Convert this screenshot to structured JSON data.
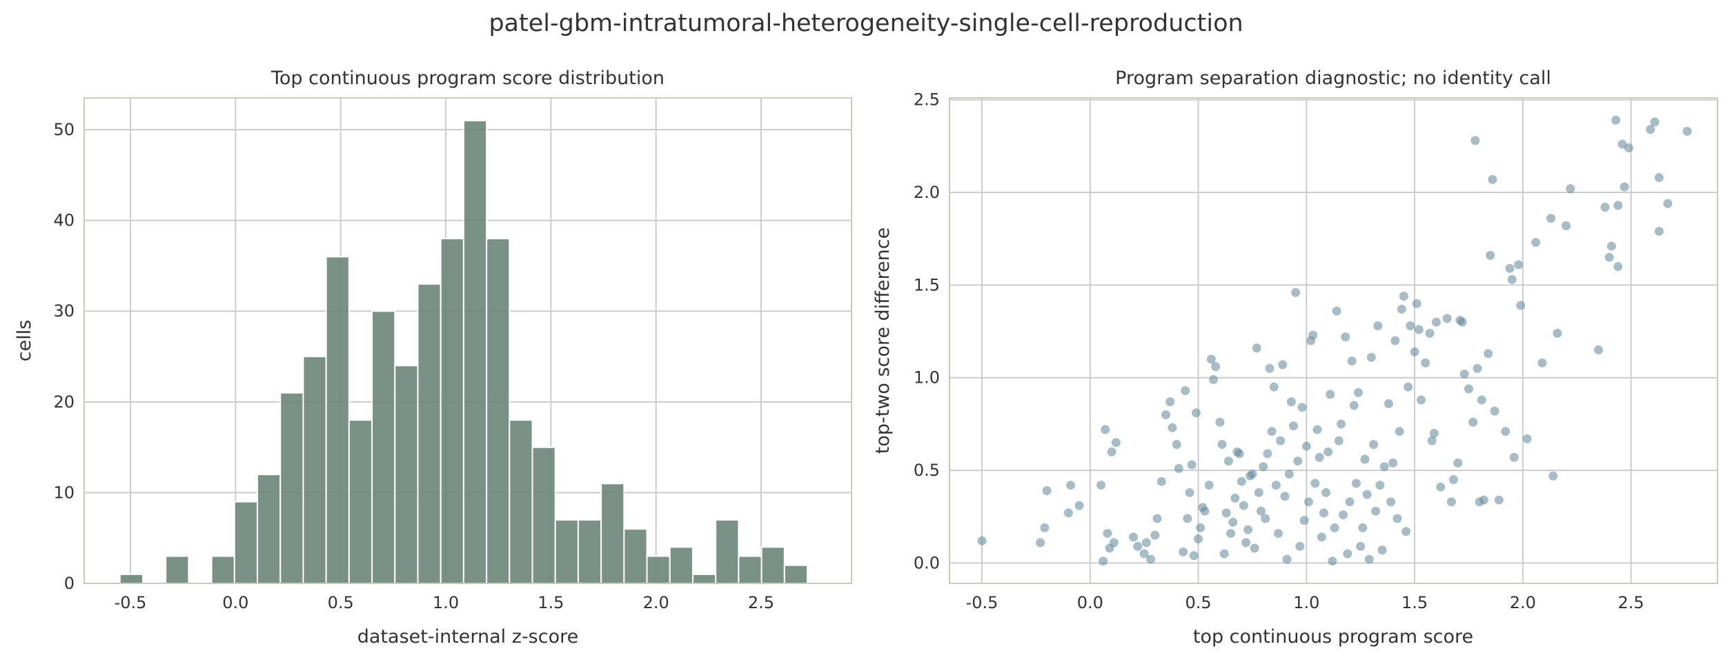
{
  "suptitle": "patel-gbm-intratumoral-heterogeneity-single-cell-reproduction",
  "chart_data": [
    {
      "type": "bar",
      "title": "Top continuous program score distribution",
      "xlabel": "dataset-internal z-score",
      "ylabel": "cells",
      "bin_edges": [
        -0.55,
        -0.441,
        -0.332,
        -0.223,
        -0.114,
        -0.005,
        0.104,
        0.213,
        0.322,
        0.431,
        0.54,
        0.649,
        0.758,
        0.867,
        0.976,
        1.085,
        1.194,
        1.303,
        1.412,
        1.521,
        1.63,
        1.739,
        1.848,
        1.957,
        2.066,
        2.175,
        2.284,
        2.393,
        2.502,
        2.611,
        2.72
      ],
      "values": [
        1,
        0,
        3,
        0,
        3,
        9,
        12,
        21,
        25,
        36,
        18,
        30,
        24,
        33,
        38,
        51,
        38,
        18,
        15,
        7,
        7,
        11,
        6,
        3,
        4,
        1,
        7,
        3,
        4,
        2
      ],
      "xlim": [
        -0.72,
        2.93
      ],
      "ylim": [
        0,
        53.5
      ],
      "xticks": [
        "-0.5",
        "0.0",
        "0.5",
        "1.0",
        "1.5",
        "2.0",
        "2.5"
      ],
      "yticks": [
        "0",
        "10",
        "20",
        "30",
        "40",
        "50"
      ],
      "grid": true,
      "color": "#6b8579"
    },
    {
      "type": "scatter",
      "title": "Program separation diagnostic; no identity call",
      "xlabel": "top continuous program score",
      "ylabel": "top-two score difference",
      "xlim": [
        -0.65,
        2.9
      ],
      "ylim": [
        -0.11,
        2.51
      ],
      "xticks": [
        "-0.5",
        "0.0",
        "0.5",
        "1.0",
        "1.5",
        "2.0",
        "2.5"
      ],
      "yticks": [
        "0.0",
        "0.5",
        "1.0",
        "1.5",
        "2.0",
        "2.5"
      ],
      "grid": true,
      "color": "#5e8797",
      "points": [
        [
          -0.5,
          0.12
        ],
        [
          -0.23,
          0.11
        ],
        [
          -0.21,
          0.19
        ],
        [
          -0.2,
          0.39
        ],
        [
          -0.1,
          0.27
        ],
        [
          -0.09,
          0.42
        ],
        [
          -0.05,
          0.31
        ],
        [
          0.05,
          0.42
        ],
        [
          0.07,
          0.72
        ],
        [
          0.08,
          0.16
        ],
        [
          0.1,
          0.6
        ],
        [
          0.12,
          0.65
        ],
        [
          0.06,
          0.01
        ],
        [
          0.09,
          0.08
        ],
        [
          0.11,
          0.11
        ],
        [
          0.2,
          0.14
        ],
        [
          0.22,
          0.09
        ],
        [
          0.25,
          0.05
        ],
        [
          0.26,
          0.11
        ],
        [
          0.28,
          0.02
        ],
        [
          0.3,
          0.15
        ],
        [
          0.31,
          0.24
        ],
        [
          0.33,
          0.44
        ],
        [
          0.35,
          0.8
        ],
        [
          0.37,
          0.87
        ],
        [
          0.38,
          0.73
        ],
        [
          0.4,
          0.64
        ],
        [
          0.41,
          0.51
        ],
        [
          0.43,
          0.06
        ],
        [
          0.44,
          0.93
        ],
        [
          0.45,
          0.24
        ],
        [
          0.46,
          0.38
        ],
        [
          0.47,
          0.53
        ],
        [
          0.48,
          0.04
        ],
        [
          0.49,
          0.81
        ],
        [
          0.5,
          0.13
        ],
        [
          0.51,
          0.19
        ],
        [
          0.52,
          0.3
        ],
        [
          0.53,
          0.28
        ],
        [
          0.55,
          0.42
        ],
        [
          0.56,
          1.1
        ],
        [
          0.57,
          0.99
        ],
        [
          0.58,
          1.06
        ],
        [
          0.6,
          0.76
        ],
        [
          0.61,
          0.64
        ],
        [
          0.62,
          0.05
        ],
        [
          0.63,
          0.27
        ],
        [
          0.64,
          0.55
        ],
        [
          0.65,
          0.16
        ],
        [
          0.66,
          0.22
        ],
        [
          0.67,
          0.35
        ],
        [
          0.68,
          0.6
        ],
        [
          0.69,
          0.59
        ],
        [
          0.7,
          0.44
        ],
        [
          0.71,
          0.31
        ],
        [
          0.72,
          0.11
        ],
        [
          0.73,
          0.18
        ],
        [
          0.74,
          0.47
        ],
        [
          0.75,
          0.48
        ],
        [
          0.76,
          0.08
        ],
        [
          0.77,
          1.16
        ],
        [
          0.78,
          0.38
        ],
        [
          0.79,
          0.28
        ],
        [
          0.8,
          0.52
        ],
        [
          0.81,
          0.24
        ],
        [
          0.82,
          0.59
        ],
        [
          0.83,
          1.05
        ],
        [
          0.84,
          0.71
        ],
        [
          0.85,
          0.95
        ],
        [
          0.86,
          0.42
        ],
        [
          0.87,
          0.16
        ],
        [
          0.88,
          0.66
        ],
        [
          0.89,
          1.07
        ],
        [
          0.9,
          0.36
        ],
        [
          0.91,
          0.02
        ],
        [
          0.92,
          0.48
        ],
        [
          0.93,
          0.87
        ],
        [
          0.94,
          0.74
        ],
        [
          0.95,
          1.46
        ],
        [
          0.96,
          0.55
        ],
        [
          0.97,
          0.09
        ],
        [
          0.98,
          0.84
        ],
        [
          0.99,
          0.23
        ],
        [
          1.0,
          0.63
        ],
        [
          1.01,
          0.33
        ],
        [
          1.02,
          1.2
        ],
        [
          1.03,
          1.23
        ],
        [
          1.04,
          0.43
        ],
        [
          1.05,
          0.72
        ],
        [
          1.06,
          0.57
        ],
        [
          1.07,
          0.14
        ],
        [
          1.08,
          0.27
        ],
        [
          1.09,
          0.38
        ],
        [
          1.1,
          0.6
        ],
        [
          1.11,
          0.91
        ],
        [
          1.12,
          0.01
        ],
        [
          1.13,
          0.19
        ],
        [
          1.14,
          1.36
        ],
        [
          1.15,
          0.66
        ],
        [
          1.16,
          0.75
        ],
        [
          1.17,
          0.26
        ],
        [
          1.18,
          1.22
        ],
        [
          1.19,
          0.05
        ],
        [
          1.2,
          0.33
        ],
        [
          1.21,
          1.09
        ],
        [
          1.22,
          0.85
        ],
        [
          1.23,
          0.43
        ],
        [
          1.24,
          0.92
        ],
        [
          1.25,
          0.09
        ],
        [
          1.26,
          0.19
        ],
        [
          1.27,
          0.56
        ],
        [
          1.28,
          0.37
        ],
        [
          1.29,
          0.02
        ],
        [
          1.3,
          1.11
        ],
        [
          1.31,
          0.64
        ],
        [
          1.32,
          0.28
        ],
        [
          1.33,
          1.28
        ],
        [
          1.34,
          0.42
        ],
        [
          1.35,
          0.07
        ],
        [
          1.36,
          0.52
        ],
        [
          1.38,
          0.86
        ],
        [
          1.39,
          0.33
        ],
        [
          1.4,
          0.54
        ],
        [
          1.41,
          1.2
        ],
        [
          1.42,
          0.24
        ],
        [
          1.43,
          0.71
        ],
        [
          1.44,
          1.37
        ],
        [
          1.45,
          1.44
        ],
        [
          1.46,
          0.17
        ],
        [
          1.47,
          0.95
        ],
        [
          1.48,
          1.28
        ],
        [
          1.5,
          1.14
        ],
        [
          1.51,
          1.4
        ],
        [
          1.52,
          1.26
        ],
        [
          1.53,
          0.88
        ],
        [
          1.55,
          1.08
        ],
        [
          1.57,
          1.24
        ],
        [
          1.58,
          0.66
        ],
        [
          1.59,
          0.7
        ],
        [
          1.6,
          1.3
        ],
        [
          1.62,
          0.41
        ],
        [
          1.65,
          1.32
        ],
        [
          1.67,
          0.33
        ],
        [
          1.68,
          0.45
        ],
        [
          1.7,
          0.54
        ],
        [
          1.71,
          1.31
        ],
        [
          1.72,
          1.3
        ],
        [
          1.73,
          1.02
        ],
        [
          1.75,
          0.94
        ],
        [
          1.77,
          0.76
        ],
        [
          1.78,
          2.28
        ],
        [
          1.79,
          1.05
        ],
        [
          1.8,
          0.33
        ],
        [
          1.81,
          0.88
        ],
        [
          1.82,
          0.34
        ],
        [
          1.84,
          1.13
        ],
        [
          1.85,
          1.66
        ],
        [
          1.86,
          2.07
        ],
        [
          1.87,
          0.82
        ],
        [
          1.89,
          0.34
        ],
        [
          1.92,
          0.71
        ],
        [
          1.94,
          1.59
        ],
        [
          1.95,
          1.53
        ],
        [
          1.96,
          0.57
        ],
        [
          1.98,
          1.61
        ],
        [
          1.99,
          1.39
        ],
        [
          2.02,
          0.67
        ],
        [
          2.06,
          1.73
        ],
        [
          2.09,
          1.08
        ],
        [
          2.13,
          1.86
        ],
        [
          2.14,
          0.47
        ],
        [
          2.16,
          1.24
        ],
        [
          2.2,
          1.82
        ],
        [
          2.22,
          2.02
        ],
        [
          2.35,
          1.15
        ],
        [
          2.38,
          1.92
        ],
        [
          2.4,
          1.65
        ],
        [
          2.41,
          1.71
        ],
        [
          2.43,
          2.39
        ],
        [
          2.44,
          1.93
        ],
        [
          2.44,
          1.6
        ],
        [
          2.46,
          2.26
        ],
        [
          2.47,
          2.03
        ],
        [
          2.49,
          2.24
        ],
        [
          2.59,
          2.34
        ],
        [
          2.61,
          2.38
        ],
        [
          2.63,
          2.08
        ],
        [
          2.63,
          1.79
        ],
        [
          2.67,
          1.94
        ],
        [
          2.76,
          2.33
        ]
      ]
    }
  ]
}
